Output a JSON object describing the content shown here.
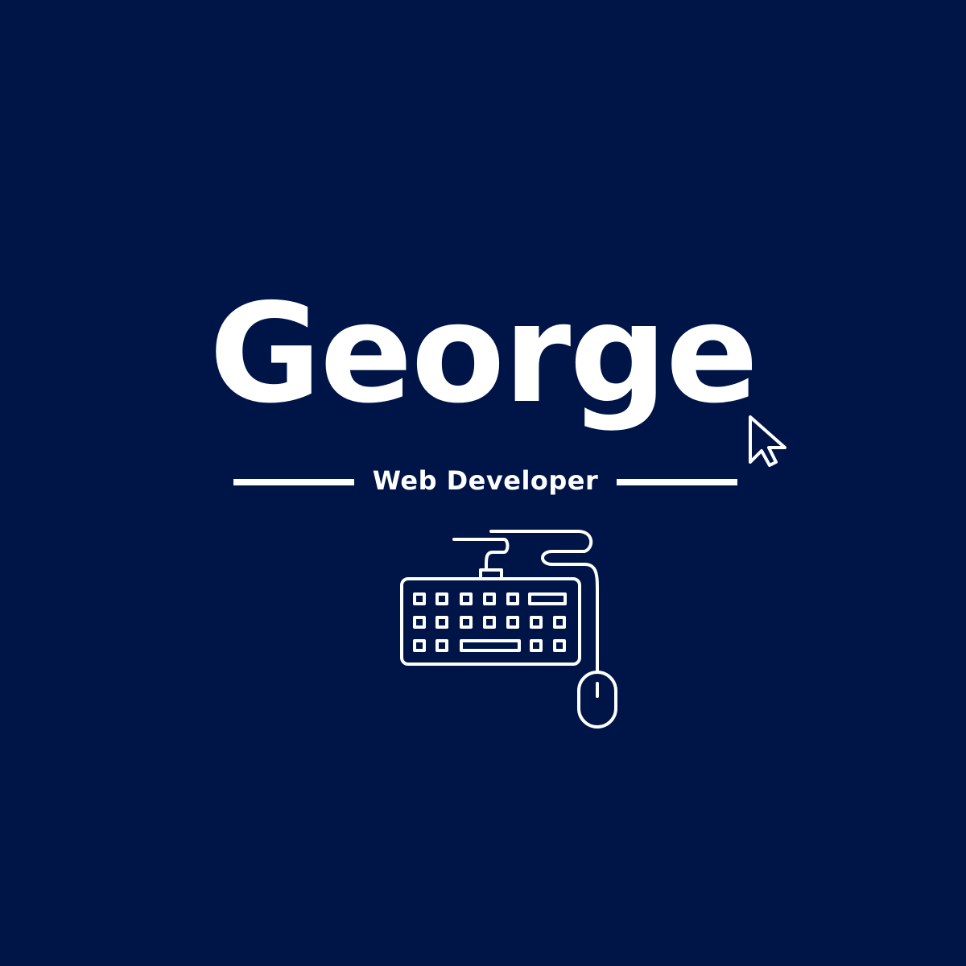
{
  "logo": {
    "name": "George",
    "subtitle": "Web Developer"
  },
  "colors": {
    "background": "#001547",
    "foreground": "#ffffff"
  },
  "icons": [
    "cursor-arrow-icon",
    "keyboard-icon",
    "mouse-icon"
  ]
}
